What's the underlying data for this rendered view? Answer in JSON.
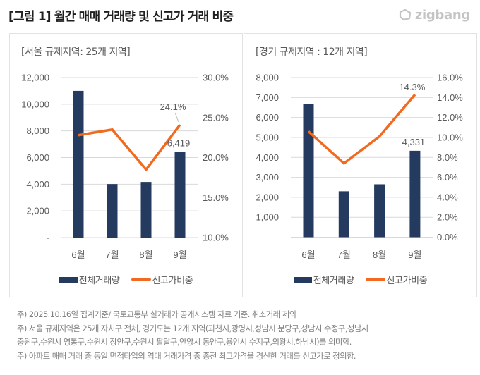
{
  "figure": {
    "title": "[그림 1] 월간 매매 거래량 및 신고가 거래 비중",
    "logo_text": "zigbang",
    "logo_icon": "zigbang-logo-icon"
  },
  "colors": {
    "bar": "#243a5e",
    "line": "#f26a1f",
    "grid": "#d9d9d9",
    "text": "#595959"
  },
  "legend": {
    "bar_label": "전체거래량",
    "line_label": "신고가비중"
  },
  "chart_data": [
    {
      "type": "bar+line",
      "title": "[서울 규제지역: 25개 지역]",
      "categories": [
        "6월",
        "7월",
        "8월",
        "9월"
      ],
      "series": [
        {
          "name": "전체거래량",
          "type": "bar",
          "axis": "left",
          "values": [
            11000,
            4010,
            4170,
            6419
          ]
        },
        {
          "name": "신고가비중",
          "type": "line",
          "axis": "right",
          "values": [
            22.8,
            23.5,
            18.5,
            24.1
          ]
        }
      ],
      "y_left": {
        "range": [
          0,
          12000
        ],
        "ticks": [
          0,
          2000,
          4000,
          6000,
          8000,
          10000,
          12000
        ],
        "tick_labels": [
          "-",
          "2,000",
          "4,000",
          "6,000",
          "8,000",
          "10,000",
          "12,000"
        ]
      },
      "y_right": {
        "range": [
          10,
          30
        ],
        "ticks": [
          10,
          15,
          20,
          25,
          30
        ],
        "tick_labels": [
          "10.0%",
          "15.0%",
          "20.0%",
          "25.0%",
          "30.0%"
        ]
      },
      "data_labels": [
        {
          "series": "전체거래량",
          "category": "9월",
          "text": "6,419"
        },
        {
          "series": "신고가비중",
          "category": "9월",
          "text": "24.1%"
        }
      ],
      "grid": true,
      "legend_position": "bottom"
    },
    {
      "type": "bar+line",
      "title": "[경기 규제지역 : 12개 지역]",
      "categories": [
        "6월",
        "7월",
        "8월",
        "9월"
      ],
      "series": [
        {
          "name": "전체거래량",
          "type": "bar",
          "axis": "left",
          "values": [
            6680,
            2300,
            2650,
            4331
          ]
        },
        {
          "name": "신고가비중",
          "type": "line",
          "axis": "right",
          "values": [
            10.6,
            7.4,
            10.1,
            14.3
          ]
        }
      ],
      "y_left": {
        "range": [
          0,
          8000
        ],
        "ticks": [
          0,
          1000,
          2000,
          3000,
          4000,
          5000,
          6000,
          7000,
          8000
        ],
        "tick_labels": [
          "-",
          "1,000",
          "2,000",
          "3,000",
          "4,000",
          "5,000",
          "6,000",
          "7,000",
          "8,000"
        ]
      },
      "y_right": {
        "range": [
          0,
          16
        ],
        "ticks": [
          0,
          2,
          4,
          6,
          8,
          10,
          12,
          14,
          16
        ],
        "tick_labels": [
          "0.0%",
          "2.0%",
          "4.0%",
          "6.0%",
          "8.0%",
          "10.0%",
          "12.0%",
          "14.0%",
          "16.0%"
        ]
      },
      "data_labels": [
        {
          "series": "전체거래량",
          "category": "9월",
          "text": "4,331"
        },
        {
          "series": "신고가비중",
          "category": "9월",
          "text": "14.3%"
        }
      ],
      "grid": true,
      "legend_position": "bottom"
    }
  ],
  "notes": [
    "주) 2025.10.16일 집계기준/ 국토교통부 실거래가 공개시스템 자료 기준. 취소거래 제외",
    "주) 서울 규제지역은 25개 자치구 전체, 경기도는 12개 지역(과천시,광명시,성남시 분당구,성남시 수정구,성남시",
    "중원구,수원시 영통구,수원시 장안구,수원시 팔달구,안양시 동안구,용인시 수지구,의왕시,하남시)를 의미함.",
    "주) 아파트 매매 거래 중 동일 면적타입의 역대 거래가격 중 종전 최고가격을 경신한 거래를 신고가로 정의함."
  ]
}
